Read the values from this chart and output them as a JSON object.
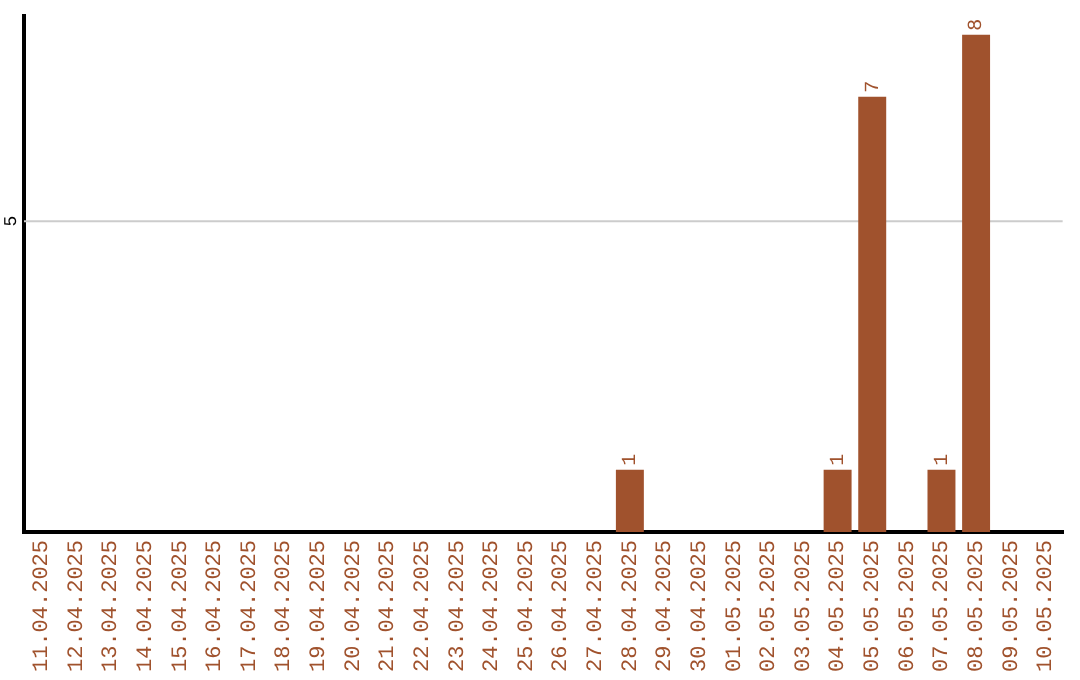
{
  "chart_data": {
    "type": "bar",
    "categories": [
      "11.04.2025",
      "12.04.2025",
      "13.04.2025",
      "14.04.2025",
      "15.04.2025",
      "16.04.2025",
      "17.04.2025",
      "18.04.2025",
      "19.04.2025",
      "20.04.2025",
      "21.04.2025",
      "22.04.2025",
      "23.04.2025",
      "24.04.2025",
      "25.04.2025",
      "26.04.2025",
      "27.04.2025",
      "28.04.2025",
      "29.04.2025",
      "30.04.2025",
      "01.05.2025",
      "02.05.2025",
      "03.05.2025",
      "04.05.2025",
      "05.05.2025",
      "06.05.2025",
      "07.05.2025",
      "08.05.2025",
      "09.05.2025",
      "10.05.2025"
    ],
    "values": [
      null,
      null,
      null,
      null,
      null,
      null,
      null,
      null,
      null,
      null,
      null,
      null,
      null,
      null,
      null,
      null,
      null,
      1,
      null,
      null,
      null,
      null,
      null,
      1,
      7,
      null,
      1,
      8,
      null,
      null
    ],
    "data_labels": true,
    "ref_lines": [
      {
        "axis": "y",
        "value": 5,
        "label": "5",
        "color": "#cccccc"
      }
    ],
    "ylim": [
      0,
      8.3
    ],
    "color": "#a0522d",
    "legend": false
  }
}
